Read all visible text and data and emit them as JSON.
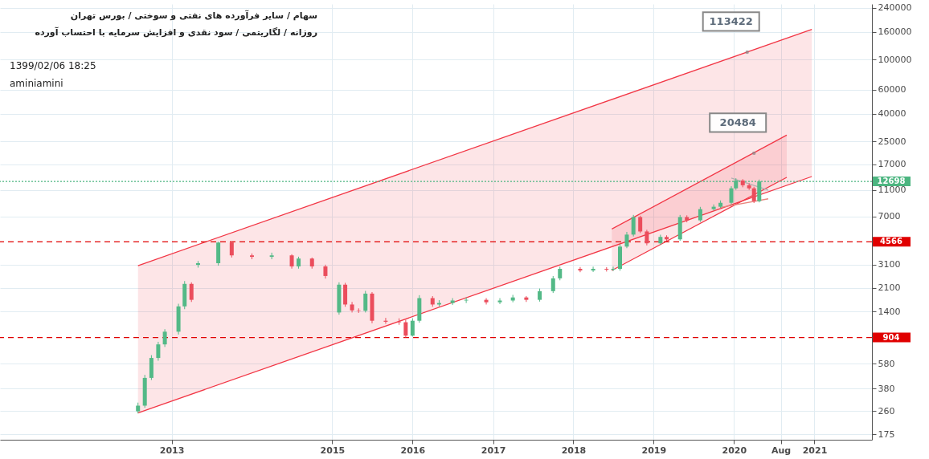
{
  "chart_data": {
    "type": "candlestick",
    "title": "سهام / سایر فرآورده های نفتی و سوختی / بورس تهران",
    "subtitle": "روزانه / لگاریتمی / سود نقدی و افزایش سرمایه با احتساب آورده",
    "x": [
      "2012-08",
      "2012-09",
      "2012-10",
      "2012-11",
      "2012-12",
      "2013-02",
      "2013-03",
      "2013-04",
      "2013-05",
      "2013-08",
      "2013-10",
      "2014-01",
      "2014-04",
      "2014-07",
      "2014-08",
      "2014-10",
      "2014-12",
      "2015-02",
      "2015-03",
      "2015-04",
      "2015-05",
      "2015-06",
      "2015-07",
      "2015-09",
      "2015-11",
      "2015-12",
      "2016-01",
      "2016-02",
      "2016-04",
      "2016-05",
      "2016-07",
      "2016-09",
      "2016-12",
      "2017-02",
      "2017-04",
      "2017-06",
      "2017-08",
      "2017-10",
      "2017-11",
      "2018-02",
      "2018-04",
      "2018-06",
      "2018-07",
      "2018-08",
      "2018-09",
      "2018-10",
      "2018-11",
      "2018-12",
      "2019-02",
      "2019-03",
      "2019-05",
      "2019-06",
      "2019-08",
      "2019-10",
      "2019-11",
      "2019-12-20",
      "2020-01-10",
      "2020-02-10",
      "2020-03-10",
      "2020-04-01",
      "2020-04-25"
    ],
    "ohlc": [
      [
        259,
        300,
        250,
        285
      ],
      [
        285,
        480,
        275,
        456
      ],
      [
        456,
        670,
        440,
        639
      ],
      [
        639,
        840,
        610,
        804
      ],
      [
        804,
        1040,
        770,
        997
      ],
      [
        997,
        1600,
        950,
        1530
      ],
      [
        1530,
        2350,
        1460,
        2240
      ],
      [
        2240,
        2300,
        1650,
        1710
      ],
      [
        3090,
        3300,
        2950,
        3180
      ],
      [
        3180,
        4566,
        3050,
        4510
      ],
      [
        4510,
        4600,
        3500,
        3630
      ],
      [
        3630,
        3750,
        3400,
        3540
      ],
      [
        3540,
        3800,
        3400,
        3630
      ],
      [
        3630,
        3700,
        2900,
        3010
      ],
      [
        3010,
        3550,
        2900,
        3440
      ],
      [
        3440,
        3500,
        2900,
        3010
      ],
      [
        3010,
        3100,
        2450,
        2560
      ],
      [
        1380,
        2300,
        1330,
        2210
      ],
      [
        2210,
        2280,
        1520,
        1580
      ],
      [
        1580,
        1650,
        1380,
        1430
      ],
      [
        1430,
        1480,
        1370,
        1420
      ],
      [
        1420,
        1990,
        1380,
        1900
      ],
      [
        1900,
        1950,
        1150,
        1200
      ],
      [
        1200,
        1260,
        1140,
        1180
      ],
      [
        1180,
        1250,
        1120,
        1170
      ],
      [
        1170,
        1220,
        904,
        932
      ],
      [
        932,
        1250,
        920,
        1200
      ],
      [
        1200,
        1850,
        1160,
        1760
      ],
      [
        1760,
        1820,
        1520,
        1580
      ],
      [
        1580,
        1700,
        1530,
        1620
      ],
      [
        1620,
        1760,
        1570,
        1690
      ],
      [
        1690,
        1780,
        1620,
        1710
      ],
      [
        1710,
        1760,
        1580,
        1640
      ],
      [
        1640,
        1760,
        1590,
        1690
      ],
      [
        1690,
        1860,
        1640,
        1780
      ],
      [
        1780,
        1820,
        1650,
        1710
      ],
      [
        1710,
        2070,
        1660,
        1980
      ],
      [
        1980,
        2560,
        1920,
        2460
      ],
      [
        2460,
        3000,
        2380,
        2890
      ],
      [
        2890,
        2980,
        2730,
        2810
      ],
      [
        2810,
        3000,
        2740,
        2890
      ],
      [
        2890,
        2970,
        2760,
        2850
      ],
      [
        2850,
        3000,
        2780,
        2890
      ],
      [
        2890,
        4400,
        2800,
        4210
      ],
      [
        4210,
        5400,
        4100,
        5160
      ],
      [
        5160,
        7200,
        5000,
        6940
      ],
      [
        6940,
        7100,
        5300,
        5440
      ],
      [
        5440,
        5600,
        4300,
        4450
      ],
      [
        4450,
        5150,
        4350,
        4960
      ],
      [
        4960,
        5100,
        4600,
        4760
      ],
      [
        4760,
        7200,
        4650,
        6940
      ],
      [
        6940,
        7150,
        6350,
        6570
      ],
      [
        6570,
        8250,
        6400,
        7940
      ],
      [
        7940,
        8600,
        7750,
        8270
      ],
      [
        8270,
        9200,
        8100,
        8840
      ],
      [
        8840,
        11700,
        8600,
        11300
      ],
      [
        11300,
        13400,
        11000,
        12900
      ],
      [
        12900,
        13200,
        11500,
        11900
      ],
      [
        11900,
        12300,
        11000,
        11300
      ],
      [
        11300,
        11600,
        8800,
        9090
      ],
      [
        9090,
        13100,
        8900,
        12698
      ]
    ],
    "series": [
      {
        "type": "line",
        "color": "#f23645",
        "x": [
          "2012-08",
          "2020-12-20"
        ],
        "values": [
          3051,
          166700
        ],
        "lower": [
          252,
          13790
        ],
        "upper": [
          3051,
          166700
        ]
      },
      {
        "type": "line",
        "color": "#f23645",
        "x": [
          "2012-08",
          "2020-12-20"
        ],
        "values": [
          252,
          13790
        ]
      },
      {
        "type": "line",
        "color": "#f23645",
        "x": [
          "2018-06-25",
          "2020-08-28"
        ],
        "values": [
          5669,
          27790
        ],
        "lower": [
          2814,
          13610
        ],
        "upper": [
          5669,
          27790
        ]
      },
      {
        "type": "line",
        "color": "#f23645",
        "x": [
          "2018-06-25",
          "2020-08-28"
        ],
        "values": [
          2814,
          13610
        ]
      },
      {
        "type": "line",
        "color": "#b0b0b0",
        "x": [
          "2019-12-20",
          "2020-06-05"
        ],
        "values": [
          13430,
          10970
        ]
      },
      {
        "type": "line",
        "color": "#e8877f",
        "x": [
          "2019-10-30",
          "2020-06-05"
        ],
        "values": [
          8157,
          9458
        ]
      }
    ],
    "xlim": [
      "2010-12",
      "2021-09"
    ],
    "xticks": [
      {
        "value": "2013",
        "label": "2013"
      },
      {
        "value": "2015",
        "label": "2015"
      },
      {
        "value": "2016",
        "label": "2016"
      },
      {
        "value": "2017",
        "label": "2017"
      },
      {
        "value": "2018",
        "label": "2018"
      },
      {
        "value": "2019",
        "label": "2019"
      },
      {
        "value": "2020",
        "label": "2020"
      },
      {
        "value": "2020-08",
        "label": "Aug"
      },
      {
        "value": "2021",
        "label": "2021"
      }
    ],
    "ylim": [
      160,
      256000
    ],
    "yticks": [
      175,
      260,
      380,
      580,
      1400,
      2100,
      3100,
      7000,
      11000,
      17000,
      25000,
      40000,
      60000,
      100000,
      160000,
      240000
    ],
    "log": true,
    "grid": true,
    "ref_lines": [
      {
        "axis": "y",
        "value": 4566,
        "label": "4566",
        "color": "#e00000",
        "line_style": "dashed"
      },
      {
        "axis": "y",
        "value": 904,
        "label": "904",
        "color": "#e00000",
        "line_style": "dashed"
      },
      {
        "axis": "y",
        "value": 12698,
        "label": "12698",
        "color": "#4cb580",
        "line_style": "dotted"
      }
    ],
    "annotations": [
      "1399/02/06 18:25",
      "aminiamini",
      {
        "text": "113422",
        "x": "2020-03",
        "y": 113422
      },
      {
        "text": "20484",
        "x": "2020-04",
        "y": 20484
      }
    ]
  }
}
